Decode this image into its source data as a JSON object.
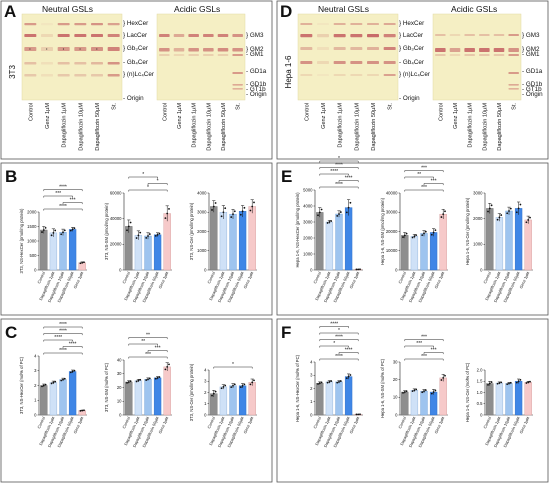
{
  "panels": {
    "A": {
      "letter": "A",
      "cell_line": "3T3"
    },
    "B": {
      "letter": "B"
    },
    "C": {
      "letter": "C"
    },
    "D": {
      "letter": "D",
      "cell_line": "Hepa 1-6"
    },
    "E": {
      "letter": "E"
    },
    "F": {
      "letter": "F"
    }
  },
  "tlc": {
    "neutral_title": "Neutral GSLs",
    "acidic_title": "Acidic GSLs",
    "neutral_bands": [
      "} HexCer",
      "} LacCer",
      "} Gb₃Cer",
      "- Gb₄Cer",
      "} (n)Lc₄Cer",
      "- Origin"
    ],
    "acidic_bands": [
      "} GM3",
      "} GM2",
      "- GM1",
      "- GD1a",
      "- GD1b",
      "- GT1b",
      "- Origin"
    ],
    "lanes_left": [
      "Control",
      "Genz 1µM",
      "Dapagliflozin 1µM",
      "Dapagliflozin 10µM",
      "Dapagliflozin 50µM",
      "St."
    ],
    "lanes_right": [
      "Control",
      "Genz 1µM",
      "Dapagliflozin 1µM",
      "Dapagliflozin 10µM",
      "Dapagliflozin 50µM",
      "St."
    ]
  },
  "colors": {
    "control": "#8e8e8e",
    "dapa1": "#cfe1f7",
    "dapa10": "#9ec4ef",
    "dapa50": "#3f86e6",
    "genz": "#f6c9c9",
    "plate": "#f5efc4",
    "band": "#c0545a"
  },
  "chart_data": [
    {
      "id": "B1",
      "type": "bar",
      "ylabel": "3T3, NS-HexCer (pmol/mg protein)",
      "ylim": [
        0,
        2000
      ],
      "yticks": [
        "0",
        "500",
        "1000",
        "1500",
        "2000"
      ],
      "categories": [
        "Control",
        "Dapagliflozin 1µM",
        "Dapagliflozin 10µM",
        "Dapagliflozin 50µM",
        "Genz 1µM"
      ],
      "values": [
        1380,
        1280,
        1300,
        1400,
        250
      ],
      "errors": [
        120,
        140,
        110,
        70,
        30
      ],
      "annotations": [
        "****",
        "***",
        "***",
        "****"
      ]
    },
    {
      "id": "B2",
      "type": "bar",
      "ylabel": "3T3, NS-SM (pmol/mg protein)",
      "ylim": [
        0,
        60000
      ],
      "yticks": [
        "0",
        "20000",
        "40000",
        "60000"
      ],
      "categories": [
        "Control",
        "Dapagliflozin 1µM",
        "Dapagliflozin 10µM",
        "Dapagliflozin 50µM",
        "Genz 1µM"
      ],
      "values": [
        34000,
        27000,
        26500,
        27500,
        44000
      ],
      "errors": [
        5000,
        3500,
        2500,
        1500,
        6000
      ],
      "annotations": [
        "*",
        "*",
        "*"
      ]
    },
    {
      "id": "B3",
      "type": "bar",
      "ylabel": "3T3, NS-Cer (pmol/mg protein)",
      "ylim": [
        0,
        4000
      ],
      "yticks": [
        "0",
        "1000",
        "2000",
        "3000",
        "4000"
      ],
      "categories": [
        "Control",
        "Dapagliflozin 1µM",
        "Dapagliflozin 10µM",
        "Dapagliflozin 50µM",
        "Genz 1µM"
      ],
      "values": [
        3300,
        3000,
        2900,
        3050,
        3300
      ],
      "errors": [
        300,
        350,
        250,
        300,
        350
      ],
      "annotations": []
    },
    {
      "id": "C1",
      "type": "bar",
      "ylabel": "3T3, NS-HexCer (mol% of PC)",
      "ylim": [
        0,
        4
      ],
      "yticks": [
        "0",
        "1",
        "2",
        "3",
        "4"
      ],
      "categories": [
        "Control",
        "Dapagliflozin 1µM",
        "Dapagliflozin 10µM",
        "Dapagliflozin 50µM",
        "Genz 1µM"
      ],
      "values": [
        2.0,
        2.2,
        2.4,
        2.95,
        0.3
      ],
      "errors": [
        0.1,
        0.1,
        0.1,
        0.1,
        0.03
      ],
      "annotations": [
        "****",
        "****",
        "****",
        "****",
        "****"
      ]
    },
    {
      "id": "C2",
      "type": "bar",
      "ylabel": "3T3, NS-SM (mol% of PC)",
      "ylim": [
        0,
        40
      ],
      "yticks": [
        "0",
        "10",
        "20",
        "30",
        "40"
      ],
      "categories": [
        "Control",
        "Dapagliflozin 1µM",
        "Dapagliflozin 10µM",
        "Dapagliflozin 50µM",
        "Genz 1µM"
      ],
      "values": [
        24,
        25,
        26,
        27,
        35
      ],
      "errors": [
        1,
        1,
        1,
        1,
        3
      ],
      "annotations": [
        "***",
        "***",
        "**",
        "**"
      ]
    },
    {
      "id": "C3",
      "type": "bar",
      "ylabel": "3T3, NS-Cer (pmol/mg protein)",
      "ylim": [
        0,
        4
      ],
      "yticks": [
        "0",
        "1",
        "2",
        "3",
        "4"
      ],
      "categories": [
        "Control",
        "Dapagliflozin 1µM",
        "Dapagliflozin 10µM",
        "Dapagliflozin 50µM",
        "Genz 1µM"
      ],
      "values": [
        1.9,
        2.5,
        2.6,
        2.6,
        2.9
      ],
      "errors": [
        0.3,
        0.2,
        0.2,
        0.2,
        0.3
      ],
      "annotations": [
        "*"
      ]
    },
    {
      "id": "E1",
      "type": "bar",
      "ylabel": "Hepa 1-6, NS-HexCer (pmol/mg protein)",
      "ylim": [
        0,
        5000
      ],
      "yticks": [
        "0",
        "1000",
        "2000",
        "3000",
        "4000",
        "5000"
      ],
      "categories": [
        "Control",
        "Dapagliflozin 1µM",
        "Dapagliflozin 10µM",
        "Dapagliflozin 50µM",
        "Genz 1µM"
      ],
      "values": [
        3600,
        3000,
        3500,
        3900,
        40
      ],
      "errors": [
        300,
        100,
        200,
        500,
        10
      ],
      "annotations": [
        "****",
        "****",
        "****",
        "****",
        "*"
      ]
    },
    {
      "id": "E2",
      "type": "bar",
      "ylabel": "Hepa 1-6, NS-SM (pmol/mg protein)",
      "ylim": [
        0,
        40000
      ],
      "yticks": [
        "0",
        "10000",
        "20000",
        "30000",
        "40000"
      ],
      "categories": [
        "Control",
        "Dapagliflozin 1µM",
        "Dapagliflozin 10µM",
        "Dapagliflozin 50µM",
        "Genz 1µM"
      ],
      "values": [
        18000,
        17500,
        19000,
        19500,
        29000
      ],
      "errors": [
        1500,
        1000,
        1500,
        2000,
        2500
      ],
      "annotations": [
        "***",
        "***",
        "**",
        "***"
      ]
    },
    {
      "id": "E3",
      "type": "bar",
      "ylabel": "Hepa 1-6, NS-Cer (pmol/mg protein)",
      "ylim": [
        0,
        3000
      ],
      "yticks": [
        "0",
        "1000",
        "2000",
        "3000"
      ],
      "categories": [
        "Control",
        "Dapagliflozin 1µM",
        "Dapagliflozin 10µM",
        "Dapagliflozin 50µM",
        "Genz 1µM"
      ],
      "values": [
        2400,
        2050,
        2300,
        2400,
        1950
      ],
      "errors": [
        200,
        150,
        150,
        250,
        150
      ],
      "annotations": []
    },
    {
      "id": "F1",
      "type": "bar",
      "ylabel": "Hepa 1-6, NS-HexCer (mol% of PC)",
      "ylim": [
        0,
        4
      ],
      "yticks": [
        "0",
        "1",
        "2",
        "3",
        "4"
      ],
      "categories": [
        "Control",
        "Dapagliflozin 1µM",
        "Dapagliflozin 10µM",
        "Dapagliflozin 50µM",
        "Genz 1µM"
      ],
      "values": [
        2.4,
        2.5,
        2.5,
        2.9,
        0.05
      ],
      "errors": [
        0.1,
        0.1,
        0.1,
        0.2,
        0.01
      ],
      "annotations": [
        "****",
        "****",
        "*",
        "****",
        "*",
        "****"
      ]
    },
    {
      "id": "F2",
      "type": "bar",
      "ylabel": "Hepa 1-6, NS-SM (mol% of PC)",
      "ylim": [
        0,
        30
      ],
      "yticks": [
        "0",
        "10",
        "20",
        "30"
      ],
      "categories": [
        "Control",
        "Dapagliflozin 1µM",
        "Dapagliflozin 10µM",
        "Dapagliflozin 50µM",
        "Genz 1µM"
      ],
      "values": [
        13,
        14,
        13.5,
        13,
        21
      ],
      "errors": [
        0.8,
        0.8,
        1,
        1.5,
        2
      ],
      "annotations": [
        "***",
        "***",
        "***",
        "***"
      ]
    },
    {
      "id": "F3",
      "type": "bar",
      "ylabel": "Hepa 1-6, NS-Cer (mol% of PC)",
      "ylim": [
        0,
        2
      ],
      "yticks": [
        "0",
        "0.5",
        "1.0",
        "1.5",
        "2.0"
      ],
      "categories": [
        "Control",
        "Dapagliflozin 1µM",
        "Dapagliflozin 10µM",
        "Dapagliflozin 50µM",
        "Genz 1µM"
      ],
      "values": [
        1.4,
        1.42,
        1.4,
        1.5,
        1.45
      ],
      "errors": [
        0.1,
        0.05,
        0.05,
        0.1,
        0.05
      ],
      "annotations": []
    }
  ]
}
